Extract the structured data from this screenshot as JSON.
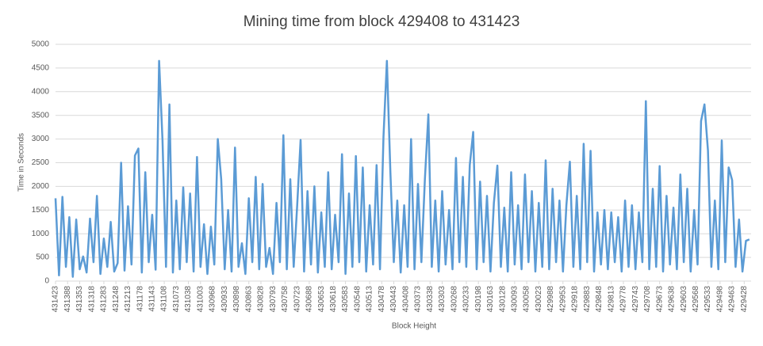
{
  "chart_data": {
    "type": "line",
    "title": "Mining time from block 429408 to 431423",
    "y_label": "Time in Seconds",
    "x_label": "Block Height",
    "ylim": [
      0,
      5000
    ],
    "yticks": [
      0,
      500,
      1000,
      1500,
      2000,
      2500,
      3000,
      3500,
      4000,
      4500,
      5000
    ],
    "grid": true,
    "xlim": [
      431423,
      429408
    ],
    "xticks": [
      431423,
      431388,
      431353,
      431318,
      431283,
      431248,
      431213,
      431178,
      431143,
      431108,
      431073,
      431038,
      431003,
      430968,
      430933,
      430898,
      430863,
      430828,
      430793,
      430758,
      430723,
      430688,
      430653,
      430618,
      430583,
      430548,
      430513,
      430478,
      430443,
      430408,
      430373,
      430338,
      430303,
      430268,
      430233,
      430198,
      430163,
      430128,
      430093,
      430058,
      430023,
      429988,
      429953,
      429918,
      429883,
      429848,
      429813,
      429778,
      429743,
      429708,
      429673,
      429638,
      429603,
      429568,
      429533,
      429498,
      429463,
      429428
    ],
    "x": [
      431423,
      431413,
      431403,
      431393,
      431383,
      431373,
      431363,
      431353,
      431343,
      431333,
      431323,
      431313,
      431303,
      431293,
      431283,
      431273,
      431263,
      431253,
      431243,
      431233,
      431223,
      431213,
      431203,
      431193,
      431183,
      431173,
      431163,
      431153,
      431143,
      431133,
      431123,
      431113,
      431103,
      431093,
      431083,
      431073,
      431063,
      431053,
      431043,
      431033,
      431023,
      431013,
      431003,
      430993,
      430983,
      430973,
      430963,
      430953,
      430943,
      430933,
      430923,
      430913,
      430903,
      430893,
      430883,
      430873,
      430863,
      430853,
      430843,
      430833,
      430823,
      430813,
      430803,
      430793,
      430783,
      430773,
      430763,
      430753,
      430743,
      430733,
      430723,
      430713,
      430703,
      430693,
      430683,
      430673,
      430663,
      430653,
      430643,
      430633,
      430623,
      430613,
      430603,
      430593,
      430583,
      430573,
      430563,
      430553,
      430543,
      430533,
      430523,
      430513,
      430503,
      430493,
      430483,
      430473,
      430463,
      430453,
      430443,
      430433,
      430423,
      430413,
      430403,
      430393,
      430383,
      430373,
      430363,
      430353,
      430343,
      430333,
      430323,
      430313,
      430303,
      430293,
      430283,
      430273,
      430263,
      430253,
      430243,
      430233,
      430223,
      430213,
      430203,
      430193,
      430183,
      430173,
      430163,
      430153,
      430143,
      430133,
      430123,
      430113,
      430103,
      430093,
      430083,
      430073,
      430063,
      430053,
      430043,
      430033,
      430023,
      430013,
      430003,
      429993,
      429983,
      429973,
      429963,
      429953,
      429943,
      429933,
      429923,
      429913,
      429903,
      429893,
      429883,
      429873,
      429863,
      429853,
      429843,
      429833,
      429823,
      429813,
      429803,
      429793,
      429783,
      429773,
      429763,
      429753,
      429743,
      429733,
      429723,
      429713,
      429703,
      429693,
      429683,
      429673,
      429663,
      429653,
      429643,
      429633,
      429623,
      429613,
      429603,
      429593,
      429583,
      429573,
      429563,
      429553,
      429543,
      429533,
      429523,
      429513,
      429503,
      429493,
      429483,
      429473,
      429463,
      429453,
      429443,
      429433,
      429423,
      429413
    ],
    "series": [
      {
        "color": "#5b9bd5",
        "values": [
          1750,
          120,
          1780,
          300,
          1350,
          90,
          1300,
          250,
          520,
          180,
          1320,
          400,
          1800,
          150,
          900,
          300,
          1250,
          200,
          380,
          2500,
          220,
          1580,
          350,
          2650,
          2800,
          180,
          2300,
          400,
          1400,
          240,
          4650,
          2970,
          300,
          3730,
          180,
          1700,
          250,
          1980,
          400,
          1850,
          200,
          2620,
          300,
          1200,
          150,
          1150,
          350,
          3000,
          2150,
          250,
          1500,
          200,
          2820,
          300,
          800,
          150,
          1750,
          400,
          2200,
          250,
          2050,
          300,
          700,
          150,
          1650,
          400,
          3080,
          250,
          2150,
          300,
          1600,
          2980,
          200,
          1900,
          350,
          2000,
          180,
          1450,
          300,
          2300,
          250,
          1400,
          400,
          2680,
          150,
          1850,
          300,
          2640,
          400,
          2400,
          200,
          1600,
          350,
          2450,
          250,
          3050,
          4650,
          2300,
          400,
          1700,
          180,
          1600,
          300,
          3000,
          250,
          2050,
          400,
          2150,
          3520,
          300,
          1700,
          200,
          1900,
          350,
          1500,
          250,
          2600,
          400,
          2200,
          300,
          2450,
          3150,
          250,
          2100,
          400,
          1800,
          200,
          1650,
          2440,
          300,
          1550,
          200,
          2300,
          350,
          1600,
          250,
          2250,
          400,
          1900,
          200,
          1650,
          300,
          2550,
          250,
          1950,
          400,
          1700,
          200,
          1600,
          2520,
          300,
          1800,
          250,
          2900,
          400,
          2750,
          200,
          1450,
          350,
          1500,
          250,
          1450,
          400,
          1350,
          200,
          1700,
          300,
          1600,
          250,
          1450,
          400,
          3800,
          250,
          1950,
          300,
          2430,
          200,
          1800,
          350,
          1550,
          250,
          2250,
          400,
          1950,
          200,
          1500,
          350,
          3380,
          3730,
          2760,
          300,
          1700,
          250,
          2970,
          400,
          2400,
          2130,
          300,
          1300,
          200,
          850,
          880
        ]
      }
    ]
  }
}
